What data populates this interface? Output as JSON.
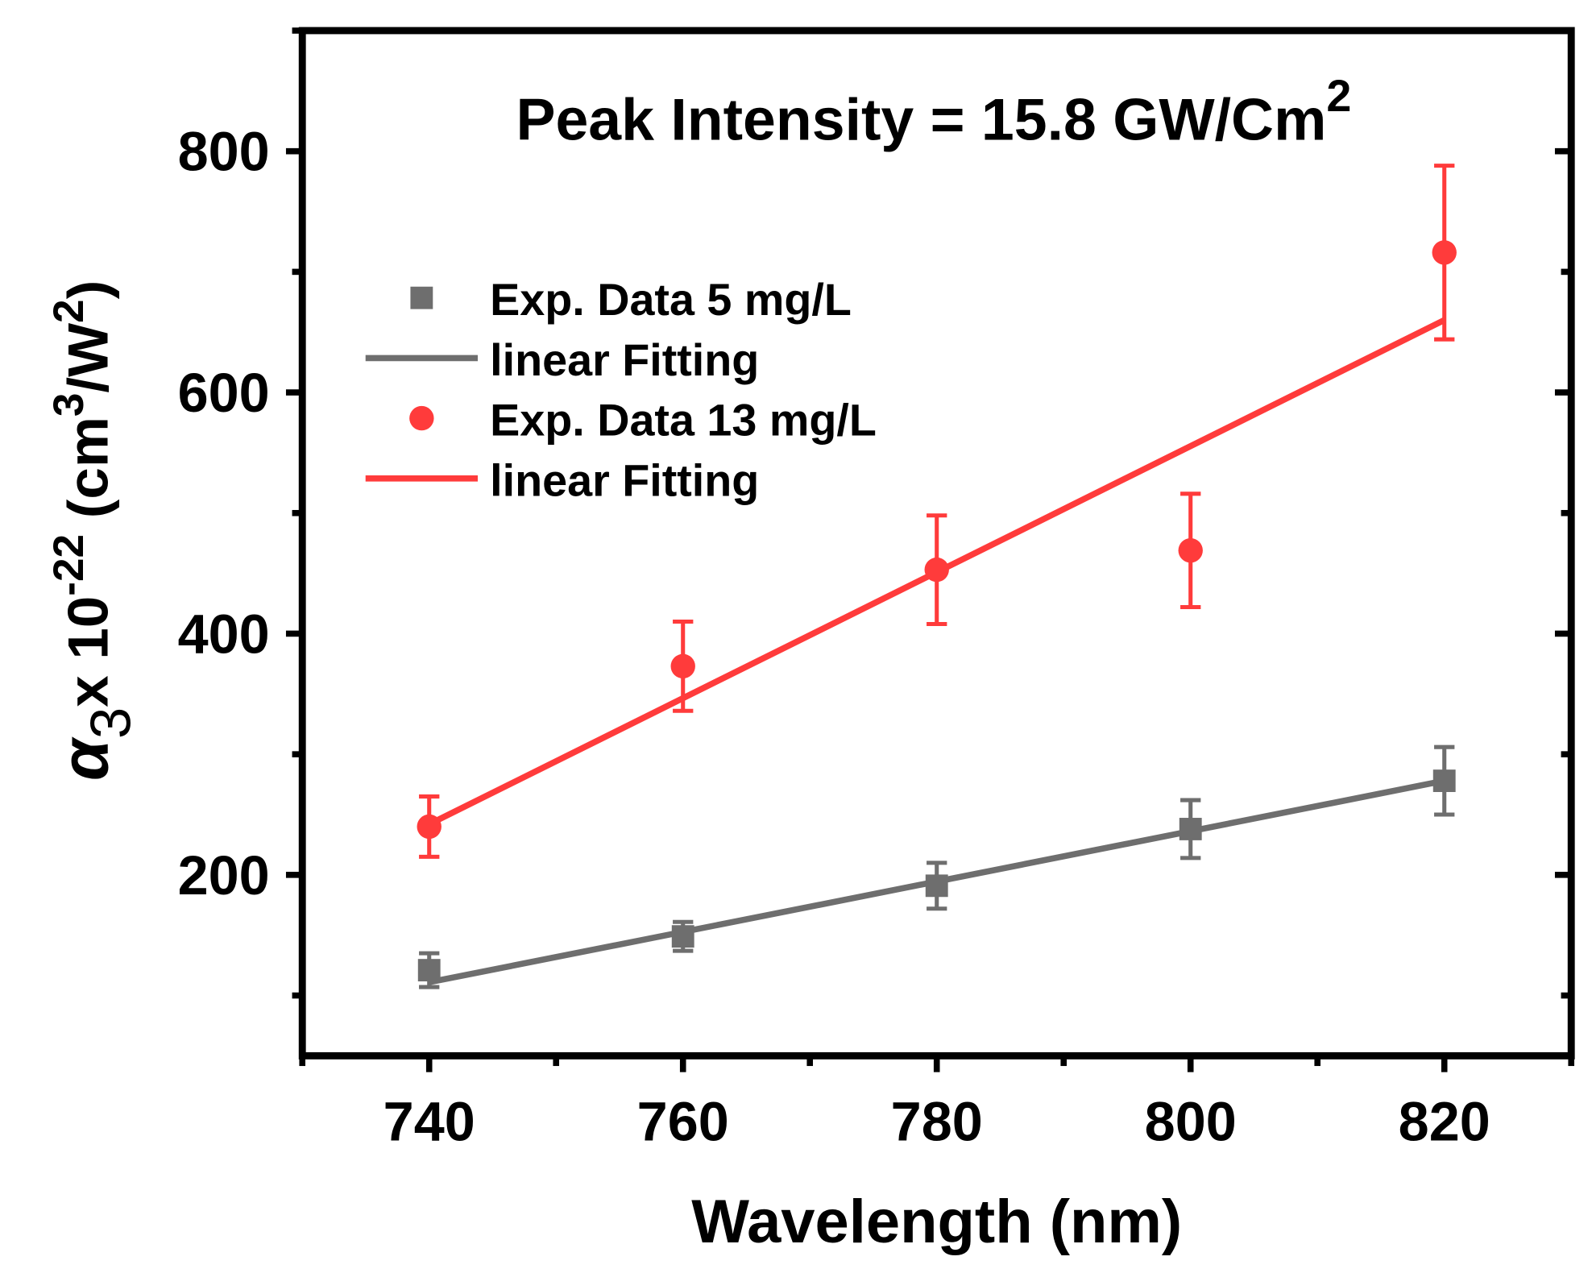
{
  "chart_data": {
    "type": "scatter",
    "title": "Peak Intensity = 15.8 GW/Cm",
    "title_superscript": "2",
    "xlabel": "Wavelength (nm)",
    "ylabel_parts": {
      "symbol": "α",
      "subscript": "3",
      "times": "x 10",
      "exp": "-22",
      "unit_a": " (cm",
      "exp2": "3",
      "unit_b": "/W",
      "exp3": "2",
      "unit_c": ")"
    },
    "xlim": [
      730,
      830
    ],
    "ylim": [
      50,
      900
    ],
    "xticks": [
      740,
      760,
      780,
      800,
      820
    ],
    "yticks": [
      200,
      400,
      600,
      800
    ],
    "x_minor_step": 10,
    "y_minor_step": 100,
    "legend_position": "top-left",
    "series": [
      {
        "name": "Exp. Data 5 mg/L",
        "kind": "points",
        "marker": "square",
        "color": "#6e6e6e",
        "x": [
          740,
          760,
          780,
          800,
          820
        ],
        "y": [
          121,
          149,
          191,
          238,
          278
        ],
        "err": [
          14,
          12,
          19,
          24,
          28
        ]
      },
      {
        "name": "linear Fitting",
        "kind": "line",
        "color": "#6e6e6e",
        "x": [
          740,
          820
        ],
        "y": [
          111,
          278
        ]
      },
      {
        "name": "Exp. Data 13 mg/L",
        "kind": "points",
        "marker": "circle",
        "color": "#ff3b3b",
        "x": [
          740,
          760,
          780,
          800,
          820
        ],
        "y": [
          240,
          373,
          453,
          469,
          716
        ],
        "err": [
          25,
          37,
          45,
          47,
          72
        ]
      },
      {
        "name": "linear Fitting",
        "kind": "line",
        "color": "#ff3b3b",
        "x": [
          740,
          820
        ],
        "y": [
          242,
          660
        ]
      }
    ]
  }
}
